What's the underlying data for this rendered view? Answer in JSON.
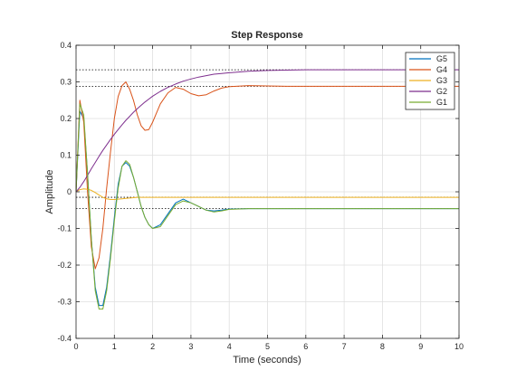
{
  "chart_data": {
    "type": "line",
    "title": "Step Response",
    "xlabel": "Time (seconds)",
    "ylabel": "Amplitude",
    "xlim": [
      0,
      10
    ],
    "ylim": [
      -0.4,
      0.4
    ],
    "x_ticks": [
      0,
      1,
      2,
      3,
      4,
      5,
      6,
      7,
      8,
      9,
      10
    ],
    "y_ticks": [
      -0.4,
      -0.3,
      -0.2,
      -0.1,
      0,
      0.1,
      0.2,
      0.3,
      0.4
    ],
    "x_tick_labels": [
      "0",
      "1",
      "2",
      "3",
      "4",
      "5",
      "6",
      "7",
      "8",
      "9",
      "10"
    ],
    "y_tick_labels": [
      "-0.4",
      "-0.3",
      "-0.2",
      "-0.1",
      "0",
      "0.1",
      "0.2",
      "0.3",
      "0.4"
    ],
    "grid": true,
    "legend_position": "top-right",
    "x": [
      0,
      0.1,
      0.2,
      0.3,
      0.4,
      0.5,
      0.6,
      0.7,
      0.8,
      0.9,
      1.0,
      1.1,
      1.2,
      1.3,
      1.4,
      1.5,
      1.6,
      1.7,
      1.8,
      1.9,
      2.0,
      2.2,
      2.4,
      2.6,
      2.8,
      3.0,
      3.2,
      3.4,
      3.6,
      3.8,
      4.0,
      4.5,
      5.0,
      5.5,
      6.0,
      7.0,
      8.0,
      9.0,
      10.0
    ],
    "series": [
      {
        "name": "G5",
        "color": "#0072BD",
        "values": [
          0,
          0.22,
          0.2,
          0.05,
          -0.13,
          -0.26,
          -0.31,
          -0.31,
          -0.26,
          -0.17,
          -0.07,
          0.02,
          0.07,
          0.08,
          0.07,
          0.04,
          0.0,
          -0.04,
          -0.07,
          -0.09,
          -0.1,
          -0.09,
          -0.06,
          -0.03,
          -0.02,
          -0.03,
          -0.04,
          -0.05,
          -0.052,
          -0.05,
          -0.047,
          -0.046,
          -0.046,
          -0.046,
          -0.046,
          -0.046,
          -0.046,
          -0.046,
          -0.046
        ]
      },
      {
        "name": "G4",
        "color": "#D95319",
        "values": [
          0,
          0.25,
          0.19,
          0.0,
          -0.15,
          -0.21,
          -0.18,
          -0.1,
          0.01,
          0.11,
          0.2,
          0.26,
          0.29,
          0.3,
          0.28,
          0.25,
          0.21,
          0.18,
          0.168,
          0.17,
          0.19,
          0.24,
          0.27,
          0.285,
          0.28,
          0.268,
          0.262,
          0.265,
          0.275,
          0.283,
          0.287,
          0.29,
          0.289,
          0.288,
          0.288,
          0.288,
          0.288,
          0.288,
          0.288
        ]
      },
      {
        "name": "G3",
        "color": "#EDB120",
        "values": [
          0,
          0.006,
          0.008,
          0.007,
          0.004,
          -0.002,
          -0.009,
          -0.015,
          -0.019,
          -0.021,
          -0.021,
          -0.02,
          -0.019,
          -0.018,
          -0.017,
          -0.016,
          -0.015,
          -0.015,
          -0.015,
          -0.015,
          -0.015,
          -0.015,
          -0.015,
          -0.015,
          -0.015,
          -0.015,
          -0.015,
          -0.015,
          -0.015,
          -0.015,
          -0.015,
          -0.015,
          -0.015,
          -0.015,
          -0.015,
          -0.015,
          -0.015,
          -0.015,
          -0.015
        ]
      },
      {
        "name": "G2",
        "color": "#7E2F8E",
        "values": [
          0,
          0.012,
          0.028,
          0.045,
          0.063,
          0.08,
          0.097,
          0.113,
          0.128,
          0.143,
          0.157,
          0.17,
          0.183,
          0.195,
          0.206,
          0.217,
          0.227,
          0.236,
          0.245,
          0.253,
          0.261,
          0.274,
          0.285,
          0.294,
          0.302,
          0.308,
          0.313,
          0.317,
          0.321,
          0.323,
          0.325,
          0.329,
          0.331,
          0.332,
          0.333,
          0.333,
          0.333,
          0.333,
          0.333
        ]
      },
      {
        "name": "G1",
        "color": "#77AC30",
        "values": [
          0,
          0.24,
          0.21,
          0.05,
          -0.13,
          -0.27,
          -0.32,
          -0.32,
          -0.27,
          -0.18,
          -0.08,
          0.01,
          0.07,
          0.085,
          0.075,
          0.04,
          0.0,
          -0.04,
          -0.07,
          -0.09,
          -0.1,
          -0.095,
          -0.065,
          -0.035,
          -0.025,
          -0.03,
          -0.04,
          -0.05,
          -0.055,
          -0.052,
          -0.048,
          -0.046,
          -0.046,
          -0.046,
          -0.046,
          -0.046,
          -0.046,
          -0.046,
          -0.046
        ]
      }
    ],
    "steady_state_lines": [
      0.333,
      0.288,
      -0.015,
      -0.046
    ]
  }
}
